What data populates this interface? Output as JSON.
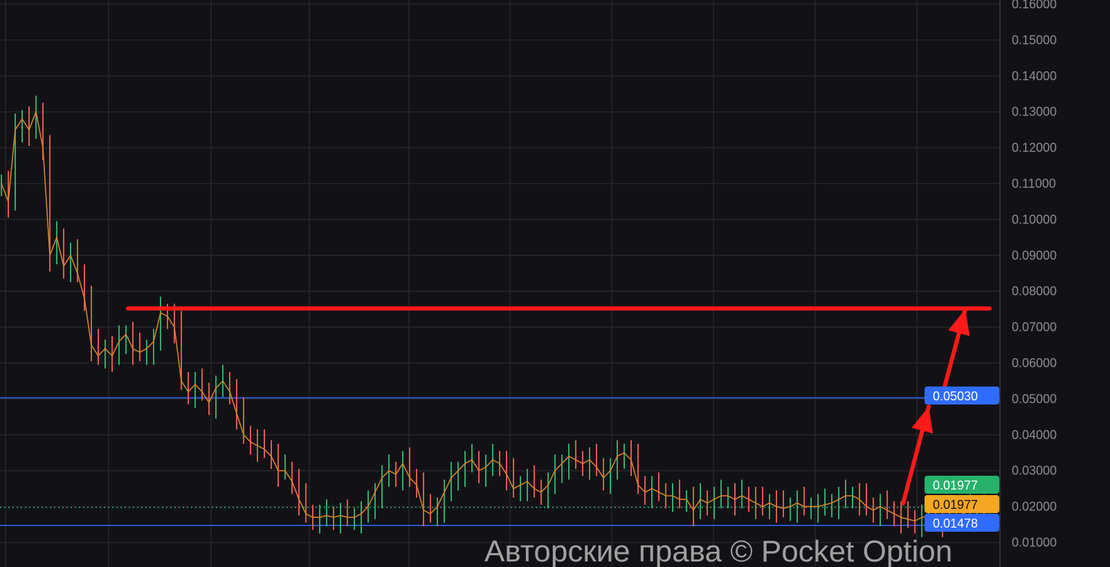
{
  "chart_data": {
    "type": "candlestick-line",
    "title": "",
    "xlabel": "",
    "ylabel": "",
    "ylim": [
      0.01,
      0.16
    ],
    "grid": true,
    "y_ticks": [
      "0.16000",
      "0.15000",
      "0.14000",
      "0.13000",
      "0.12000",
      "0.11000",
      "0.10000",
      "0.09000",
      "0.08000",
      "0.07000",
      "0.06000",
      "0.05000",
      "0.04000",
      "0.03000",
      "0.02000",
      "0.01000"
    ],
    "y_tick_values": [
      0.16,
      0.15,
      0.14,
      0.13,
      0.12,
      0.11,
      0.1,
      0.09,
      0.08,
      0.07,
      0.06,
      0.05,
      0.04,
      0.03,
      0.02,
      0.01
    ],
    "close": [
      0.11,
      0.105,
      0.125,
      0.128,
      0.125,
      0.13,
      0.12,
      0.09,
      0.095,
      0.087,
      0.09,
      0.085,
      0.078,
      0.065,
      0.062,
      0.064,
      0.062,
      0.066,
      0.068,
      0.064,
      0.063,
      0.064,
      0.066,
      0.074,
      0.073,
      0.07,
      0.055,
      0.052,
      0.054,
      0.052,
      0.049,
      0.053,
      0.055,
      0.052,
      0.046,
      0.04,
      0.038,
      0.037,
      0.036,
      0.034,
      0.03,
      0.03,
      0.027,
      0.022,
      0.018,
      0.017,
      0.017,
      0.0175,
      0.017,
      0.0175,
      0.017,
      0.017,
      0.018,
      0.02,
      0.024,
      0.028,
      0.03,
      0.029,
      0.032,
      0.028,
      0.026,
      0.019,
      0.018,
      0.02,
      0.024,
      0.028,
      0.03,
      0.032,
      0.033,
      0.03,
      0.031,
      0.033,
      0.032,
      0.029,
      0.025,
      0.026,
      0.027,
      0.025,
      0.024,
      0.026,
      0.03,
      0.032,
      0.034,
      0.033,
      0.032,
      0.033,
      0.031,
      0.028,
      0.03,
      0.034,
      0.035,
      0.033,
      0.026,
      0.024,
      0.025,
      0.024,
      0.023,
      0.023,
      0.022,
      0.022,
      0.019,
      0.022,
      0.021,
      0.022,
      0.023,
      0.023,
      0.022,
      0.023,
      0.022,
      0.021,
      0.02,
      0.021,
      0.02,
      0.0195,
      0.02,
      0.021,
      0.02,
      0.02,
      0.02,
      0.0205,
      0.021,
      0.022,
      0.023,
      0.023,
      0.022,
      0.02,
      0.019,
      0.02,
      0.019,
      0.018,
      0.017,
      0.0165,
      0.016,
      0.017,
      0.0175,
      0.017,
      0.016,
      0.018,
      0.0175,
      0.018,
      0.019,
      0.0195,
      0.0198
    ],
    "levels": {
      "resistance_drawn": 0.0752,
      "blue_upper": {
        "value": 0.0503,
        "label": "0.05030"
      },
      "blue_lower": {
        "value": 0.01478,
        "label": "0.01478"
      },
      "current_price": {
        "value": 0.01977,
        "label": "0.01977"
      },
      "current_price_alt": {
        "label": "0.01977"
      }
    },
    "colors": {
      "background": "#121216",
      "grid": "#25252b",
      "up": "#2fae6a",
      "down": "#e25a4f",
      "close_line": "#d9822b",
      "drawing": "#ff1a1a",
      "blue_line": "#2f6bff",
      "badge_green": "#26b26b",
      "badge_orange": "#f5a623",
      "badge_blue": "#2f6bff"
    }
  },
  "watermark": "Авторские права © Pocket Option"
}
